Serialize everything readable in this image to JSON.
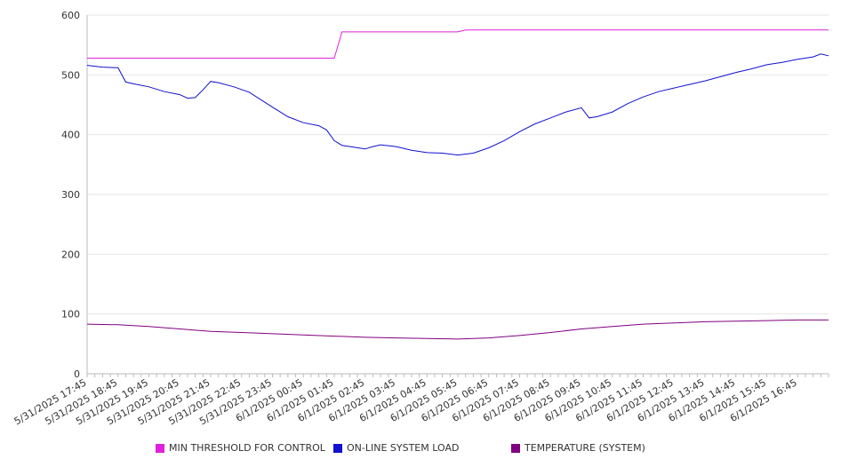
{
  "chart_data": {
    "type": "line",
    "title": "",
    "xlabel": "",
    "ylabel": "",
    "ylim": [
      0,
      600
    ],
    "yticks": [
      0,
      100,
      200,
      300,
      400,
      500,
      600
    ],
    "grid": "horizontal",
    "legend_position": "bottom",
    "x_tick_labels": [
      "5/31/2025 17:45",
      "5/31/2025 18:45",
      "5/31/2025 19:45",
      "5/31/2025 20:45",
      "5/31/2025 21:45",
      "5/31/2025 22:45",
      "5/31/2025 23:45",
      "6/1/2025 00:45",
      "6/1/2025 01:45",
      "6/1/2025 02:45",
      "6/1/2025 03:45",
      "6/1/2025 04:45",
      "6/1/2025 05:45",
      "6/1/2025 06:45",
      "6/1/2025 07:45",
      "6/1/2025 08:45",
      "6/1/2025 09:45",
      "6/1/2025 10:45",
      "6/1/2025 11:45",
      "6/1/2025 12:45",
      "6/1/2025 13:45",
      "6/1/2025 14:45",
      "6/1/2025 15:45",
      "6/1/2025 16:45"
    ],
    "series": [
      {
        "name": "MIN THRESHOLD FOR CONTROL",
        "color": "#e020e0",
        "points": [
          [
            "5/31/2025 17:45",
            528
          ],
          [
            "6/1/2025 01:45",
            528
          ],
          [
            "6/1/2025 02:00",
            572
          ],
          [
            "6/1/2025 05:45",
            572
          ],
          [
            "6/1/2025 06:00",
            575
          ],
          [
            "6/1/2025 17:45",
            575
          ]
        ]
      },
      {
        "name": "ON-LINE SYSTEM LOAD",
        "color": "#1010d0",
        "points": [
          [
            "5/31/2025 17:45",
            516
          ],
          [
            "5/31/2025 18:15",
            513
          ],
          [
            "5/31/2025 18:45",
            512
          ],
          [
            "5/31/2025 19:00",
            488
          ],
          [
            "5/31/2025 19:15",
            485
          ],
          [
            "5/31/2025 19:45",
            480
          ],
          [
            "5/31/2025 20:15",
            472
          ],
          [
            "5/31/2025 20:45",
            467
          ],
          [
            "5/31/2025 21:00",
            461
          ],
          [
            "5/31/2025 21:15",
            462
          ],
          [
            "5/31/2025 21:30",
            475
          ],
          [
            "5/31/2025 21:45",
            489
          ],
          [
            "5/31/2025 22:00",
            487
          ],
          [
            "5/31/2025 22:30",
            480
          ],
          [
            "5/31/2025 23:00",
            471
          ],
          [
            "5/31/2025 23:45",
            446
          ],
          [
            "6/1/2025 00:15",
            430
          ],
          [
            "6/1/2025 00:45",
            420
          ],
          [
            "6/1/2025 01:15",
            415
          ],
          [
            "6/1/2025 01:30",
            408
          ],
          [
            "6/1/2025 01:45",
            390
          ],
          [
            "6/1/2025 02:00",
            382
          ],
          [
            "6/1/2025 02:45",
            376
          ],
          [
            "6/1/2025 03:00",
            380
          ],
          [
            "6/1/2025 03:15",
            383
          ],
          [
            "6/1/2025 03:45",
            380
          ],
          [
            "6/1/2025 04:15",
            374
          ],
          [
            "6/1/2025 04:45",
            370
          ],
          [
            "6/1/2025 05:15",
            369
          ],
          [
            "6/1/2025 05:45",
            366
          ],
          [
            "6/1/2025 06:15",
            369
          ],
          [
            "6/1/2025 06:45",
            378
          ],
          [
            "6/1/2025 07:15",
            390
          ],
          [
            "6/1/2025 07:45",
            405
          ],
          [
            "6/1/2025 08:15",
            418
          ],
          [
            "6/1/2025 08:45",
            428
          ],
          [
            "6/1/2025 09:15",
            438
          ],
          [
            "6/1/2025 09:45",
            445
          ],
          [
            "6/1/2025 10:00",
            428
          ],
          [
            "6/1/2025 10:15",
            430
          ],
          [
            "6/1/2025 10:45",
            438
          ],
          [
            "6/1/2025 11:15",
            452
          ],
          [
            "6/1/2025 11:45",
            463
          ],
          [
            "6/1/2025 12:15",
            472
          ],
          [
            "6/1/2025 12:45",
            478
          ],
          [
            "6/1/2025 13:15",
            484
          ],
          [
            "6/1/2025 13:45",
            490
          ],
          [
            "6/1/2025 14:15",
            497
          ],
          [
            "6/1/2025 14:45",
            504
          ],
          [
            "6/1/2025 15:15",
            510
          ],
          [
            "6/1/2025 15:45",
            517
          ],
          [
            "6/1/2025 16:15",
            521
          ],
          [
            "6/1/2025 16:45",
            526
          ],
          [
            "6/1/2025 17:15",
            530
          ],
          [
            "6/1/2025 17:30",
            535
          ],
          [
            "6/1/2025 17:45",
            532
          ]
        ]
      },
      {
        "name": "TEMPERATURE (SYSTEM)",
        "color": "#800080",
        "points": [
          [
            "5/31/2025 17:45",
            83
          ],
          [
            "5/31/2025 18:45",
            82
          ],
          [
            "5/31/2025 19:45",
            79
          ],
          [
            "5/31/2025 20:45",
            75
          ],
          [
            "5/31/2025 21:45",
            71
          ],
          [
            "5/31/2025 22:45",
            69
          ],
          [
            "5/31/2025 23:45",
            67
          ],
          [
            "6/1/2025 00:45",
            65
          ],
          [
            "6/1/2025 01:45",
            63
          ],
          [
            "6/1/2025 02:45",
            61
          ],
          [
            "6/1/2025 03:45",
            60
          ],
          [
            "6/1/2025 04:45",
            59
          ],
          [
            "6/1/2025 05:45",
            58
          ],
          [
            "6/1/2025 06:45",
            60
          ],
          [
            "6/1/2025 07:45",
            64
          ],
          [
            "6/1/2025 08:45",
            69
          ],
          [
            "6/1/2025 09:45",
            75
          ],
          [
            "6/1/2025 10:45",
            79
          ],
          [
            "6/1/2025 11:45",
            83
          ],
          [
            "6/1/2025 12:45",
            85
          ],
          [
            "6/1/2025 13:45",
            87
          ],
          [
            "6/1/2025 14:45",
            88
          ],
          [
            "6/1/2025 15:45",
            89
          ],
          [
            "6/1/2025 16:45",
            90
          ],
          [
            "6/1/2025 17:45",
            90
          ]
        ]
      }
    ]
  }
}
